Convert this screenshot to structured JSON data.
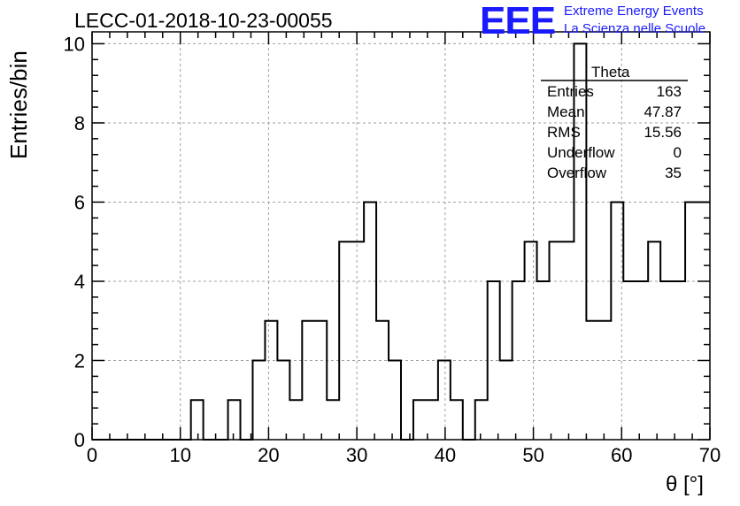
{
  "title": "LECC-01-2018-10-23-00055",
  "logo": {
    "mark": "EEE",
    "line1": "Extreme Energy Events",
    "line2": "La Scienza nelle Scuole"
  },
  "stats": {
    "name": "Theta",
    "rows": [
      {
        "label": "Entries",
        "value": "163"
      },
      {
        "label": "Mean",
        "value": "47.87"
      },
      {
        "label": "RMS",
        "value": "15.56"
      },
      {
        "label": "Underflow",
        "value": "0"
      },
      {
        "label": "Overflow",
        "value": "35"
      }
    ]
  },
  "chart_data": {
    "type": "bar",
    "histogram_style": "step",
    "title": "LECC-01-2018-10-23-00055",
    "xlabel": "θ [°]",
    "ylabel": "Entries/bin",
    "xlim": [
      0,
      70
    ],
    "ylim": [
      0,
      10.3
    ],
    "grid": true,
    "bin_width": 1.4,
    "bin_edges_start": 0,
    "x_ticks": [
      0,
      10,
      20,
      30,
      40,
      50,
      60,
      70
    ],
    "y_ticks": [
      0,
      2,
      4,
      6,
      8,
      10
    ],
    "values": [
      0,
      0,
      0,
      0,
      0,
      0,
      0,
      0,
      1,
      0,
      0,
      1,
      0,
      2,
      3,
      2,
      1,
      3,
      3,
      1,
      5,
      5,
      6,
      3,
      2,
      0,
      1,
      1,
      2,
      1,
      0,
      1,
      4,
      2,
      4,
      5,
      4,
      5,
      5,
      10,
      3,
      3,
      6,
      4,
      4,
      5,
      4,
      4,
      6,
      6
    ]
  },
  "colors": {
    "axis": "#000000",
    "grid": "#a0a0a0",
    "line": "#000000",
    "logo": "#1a1aff"
  }
}
